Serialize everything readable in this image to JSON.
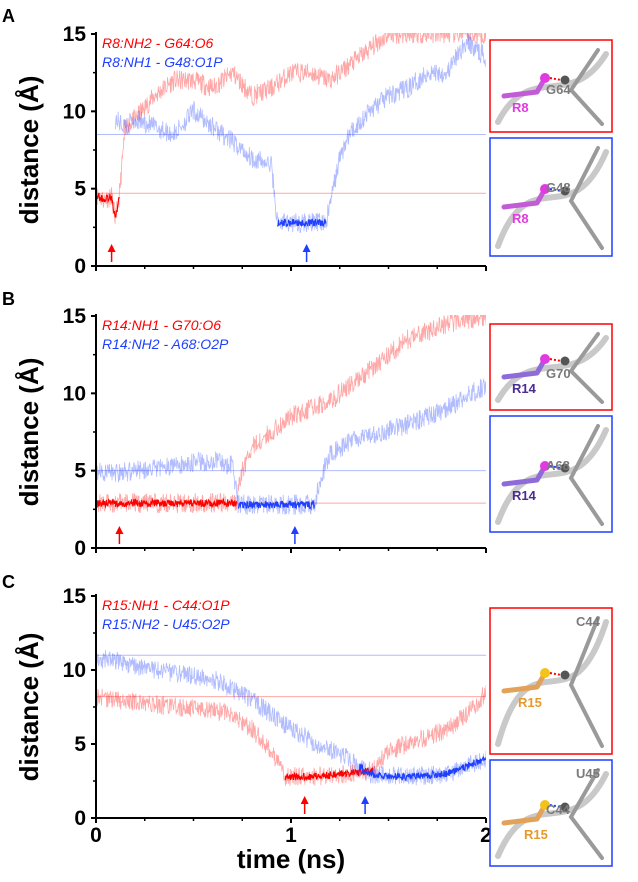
{
  "figure": {
    "xlabel": "time (ns)",
    "ylabel": "distance (Å)",
    "colors": {
      "red": "#ff0000",
      "blue": "#1f3fff"
    }
  },
  "chart_data": [
    {
      "type": "line",
      "panel": "A",
      "xlim": [
        0,
        2
      ],
      "ylim": [
        0,
        15
      ],
      "xticks": [
        0,
        1,
        2
      ],
      "yticks": [
        0,
        5,
        10,
        15
      ],
      "xlabel": "",
      "ylabel": "distance (Å)",
      "series": [
        {
          "name": "R8:NH2 - G64:O6",
          "color": "#ff0000",
          "x": [
            0.0,
            0.04,
            0.08,
            0.1,
            0.12,
            0.15,
            0.2,
            0.3,
            0.4,
            0.5,
            0.6,
            0.7,
            0.8,
            0.9,
            1.0,
            1.1,
            1.2,
            1.3,
            1.4,
            1.5,
            1.6,
            1.7,
            1.8,
            1.9,
            2.0
          ],
          "y": [
            4.6,
            4.3,
            4.5,
            3.0,
            4.6,
            9.0,
            9.5,
            11.0,
            12.0,
            12.0,
            11.5,
            12.5,
            11.0,
            11.5,
            12.5,
            12.5,
            12.0,
            13.0,
            14.0,
            15.0,
            15.0,
            15.0,
            15.0,
            15.0,
            15.0
          ],
          "solid_until": 0.12,
          "reference": 4.7
        },
        {
          "name": "R8:NH1 - G48:O1P",
          "color": "#1f3fff",
          "x": [
            0.1,
            0.15,
            0.2,
            0.3,
            0.4,
            0.5,
            0.6,
            0.7,
            0.8,
            0.9,
            0.93,
            1.0,
            1.1,
            1.18,
            1.25,
            1.3,
            1.4,
            1.5,
            1.6,
            1.7,
            1.8,
            1.9,
            2.0
          ],
          "y": [
            9.5,
            9.0,
            9.5,
            9.0,
            8.5,
            10.0,
            9.0,
            8.0,
            7.0,
            6.5,
            2.8,
            2.8,
            2.8,
            2.8,
            7.0,
            8.5,
            10.0,
            11.0,
            11.5,
            12.5,
            12.5,
            14.5,
            13.5
          ],
          "solid_from": 0.93,
          "solid_until": 1.18,
          "reference": 8.5
        }
      ],
      "arrows": [
        {
          "x": 0.08,
          "color": "#ff0000"
        },
        {
          "x": 1.08,
          "color": "#1f3fff"
        }
      ],
      "insets": [
        {
          "border": "#ff0000",
          "labels": [
            "R8",
            "G64"
          ]
        },
        {
          "border": "#1f3fff",
          "labels": [
            "R8",
            "G48"
          ]
        }
      ]
    },
    {
      "type": "line",
      "panel": "B",
      "xlim": [
        0,
        2
      ],
      "ylim": [
        0,
        15
      ],
      "xticks": [
        0,
        1,
        2
      ],
      "yticks": [
        0,
        5,
        10,
        15
      ],
      "xlabel": "",
      "ylabel": "distance (Å)",
      "series": [
        {
          "name": "R14:NH1 - G70:O6",
          "color": "#ff0000",
          "x": [
            0.0,
            0.2,
            0.4,
            0.6,
            0.72,
            0.75,
            0.8,
            0.9,
            1.0,
            1.1,
            1.2,
            1.3,
            1.4,
            1.5,
            1.6,
            1.7,
            1.8,
            1.9,
            2.0
          ],
          "y": [
            2.9,
            2.9,
            2.9,
            2.9,
            2.9,
            5.0,
            6.5,
            7.5,
            8.5,
            9.0,
            9.5,
            10.5,
            11.5,
            12.5,
            13.5,
            14.0,
            14.5,
            14.8,
            15.0
          ],
          "solid_until": 0.72,
          "reference": 2.9
        },
        {
          "name": "R14:NH2 - A68:O2P",
          "color": "#1f3fff",
          "x": [
            0.0,
            0.1,
            0.2,
            0.3,
            0.4,
            0.5,
            0.6,
            0.7,
            0.73,
            0.8,
            0.9,
            1.0,
            1.1,
            1.12,
            1.15,
            1.2,
            1.3,
            1.4,
            1.5,
            1.6,
            1.7,
            1.8,
            1.9,
            2.0
          ],
          "y": [
            5.0,
            4.8,
            5.0,
            5.2,
            5.3,
            5.5,
            5.6,
            5.3,
            2.8,
            2.8,
            2.8,
            2.8,
            2.8,
            2.8,
            4.5,
            6.0,
            6.8,
            7.3,
            7.6,
            8.0,
            8.5,
            9.0,
            9.8,
            10.5
          ],
          "solid_from": 0.73,
          "solid_until": 1.12,
          "reference": 5.0
        }
      ],
      "arrows": [
        {
          "x": 0.12,
          "color": "#ff0000"
        },
        {
          "x": 1.02,
          "color": "#1f3fff"
        }
      ],
      "insets": [
        {
          "border": "#ff0000",
          "labels": [
            "R14",
            "G70"
          ]
        },
        {
          "border": "#1f3fff",
          "labels": [
            "R14",
            "A68"
          ]
        }
      ]
    },
    {
      "type": "line",
      "panel": "C",
      "xlim": [
        0,
        2
      ],
      "ylim": [
        0,
        15
      ],
      "xticks": [
        0,
        1,
        2
      ],
      "yticks": [
        0,
        5,
        10,
        15
      ],
      "xlabel": "time (ns)",
      "ylabel": "distance (Å)",
      "series": [
        {
          "name": "R15:NH1 - C44:O1P",
          "color": "#ff0000",
          "x": [
            0.0,
            0.1,
            0.2,
            0.3,
            0.4,
            0.5,
            0.6,
            0.7,
            0.8,
            0.9,
            0.97,
            1.0,
            1.1,
            1.2,
            1.3,
            1.42,
            1.5,
            1.6,
            1.7,
            1.8,
            1.9,
            2.0
          ],
          "y": [
            8.2,
            8.0,
            7.8,
            7.7,
            7.5,
            7.4,
            7.3,
            7.0,
            6.0,
            4.5,
            2.8,
            2.8,
            2.8,
            2.9,
            3.0,
            3.2,
            4.5,
            5.0,
            5.5,
            6.0,
            7.0,
            8.5
          ],
          "solid_from": 0.97,
          "solid_until": 1.42,
          "reference": 8.2
        },
        {
          "name": "R15:NH2 - U45:O2P",
          "color": "#1f3fff",
          "x": [
            0.0,
            0.1,
            0.2,
            0.3,
            0.4,
            0.5,
            0.6,
            0.7,
            0.8,
            0.9,
            1.0,
            1.1,
            1.2,
            1.3,
            1.35,
            1.4,
            1.5,
            1.6,
            1.7,
            1.8,
            1.9,
            2.0
          ],
          "y": [
            10.8,
            10.6,
            10.3,
            10.0,
            9.8,
            9.6,
            9.4,
            8.7,
            8.0,
            7.0,
            6.0,
            5.2,
            4.6,
            4.0,
            3.5,
            3.0,
            2.8,
            2.8,
            2.9,
            3.0,
            3.5,
            4.0
          ],
          "solid_from": 1.35,
          "reference": 11.0
        }
      ],
      "arrows": [
        {
          "x": 1.07,
          "color": "#ff0000"
        },
        {
          "x": 1.38,
          "color": "#1f3fff"
        }
      ],
      "insets": [
        {
          "border": "#ff0000",
          "labels": [
            "C44",
            "R15"
          ]
        },
        {
          "border": "#1f3fff",
          "labels": [
            "U45",
            "C44",
            "R15"
          ]
        }
      ]
    }
  ]
}
